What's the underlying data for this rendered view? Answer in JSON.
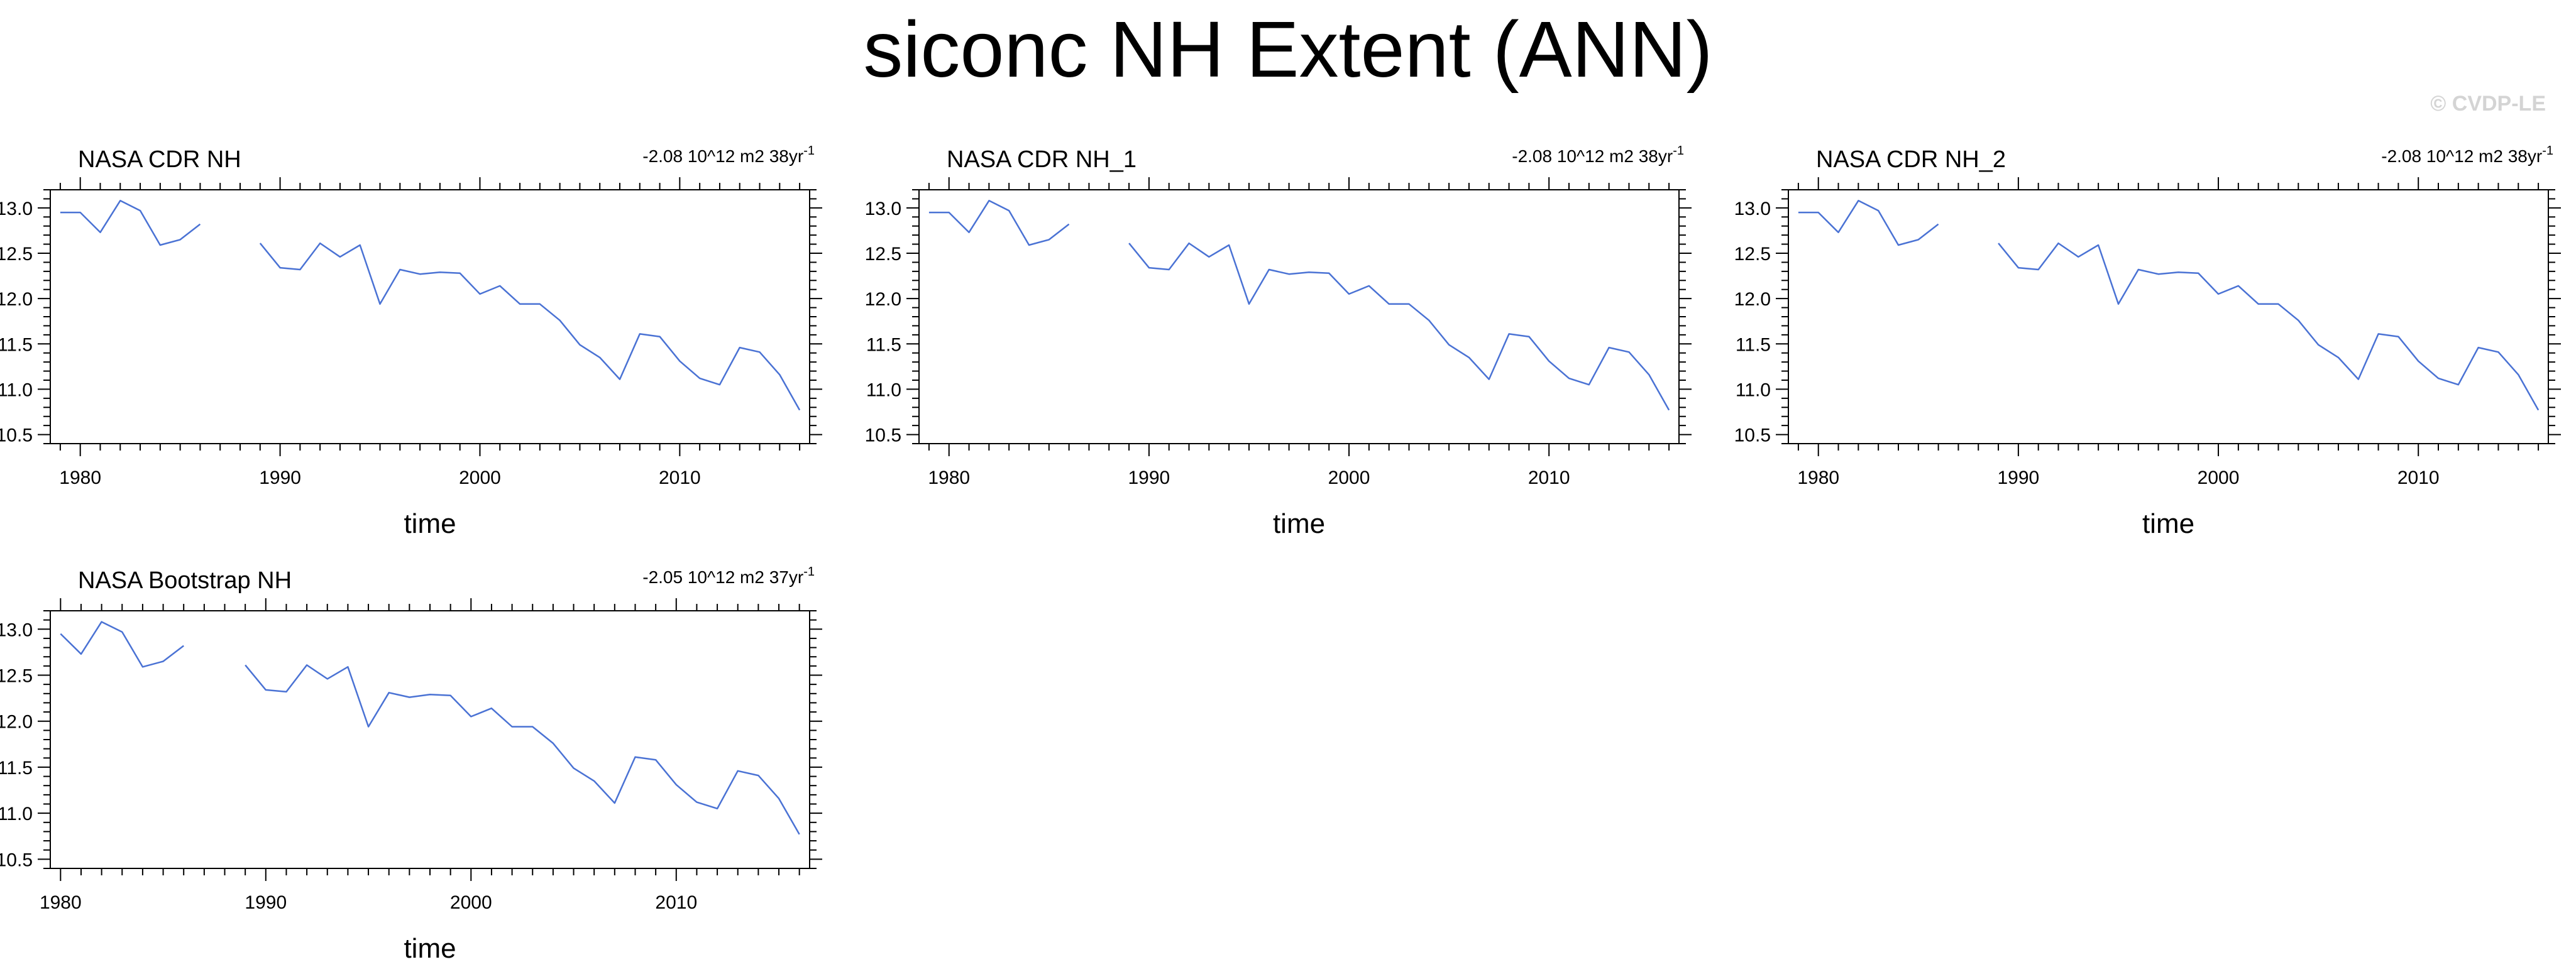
{
  "figure": {
    "title": "siconc NH Extent (ANN)",
    "watermark": "© CVDP-LE",
    "line_color": "#4a72d4"
  },
  "chart_data": [
    {
      "type": "line",
      "title": "NASA CDR NH",
      "trend_label": "-2.08 10^12 m2 38yr",
      "trend_superscript": "-1",
      "xlabel": "time",
      "ylabel": "",
      "xlim": [
        1978.5,
        2016.5
      ],
      "ylim": [
        10.4,
        13.2
      ],
      "xticks": [
        1980,
        1990,
        2000,
        2010
      ],
      "yticks": [
        10.5,
        11.0,
        11.5,
        12.0,
        12.5,
        13.0
      ],
      "ytick_labels": [
        "10.5",
        "11.0",
        "11.5",
        "12.0",
        "12.5",
        "13.0"
      ],
      "grid": false,
      "series": [
        {
          "x": [
            1979,
            1980,
            1981,
            1982,
            1983,
            1984,
            1985,
            1986,
            1987,
            1988,
            1989,
            1990,
            1991,
            1992,
            1993,
            1994,
            1995,
            1996,
            1997,
            1998,
            1999,
            2000,
            2001,
            2002,
            2003,
            2004,
            2005,
            2006,
            2007,
            2008,
            2009,
            2010,
            2011,
            2012,
            2013,
            2014,
            2015,
            2016
          ],
          "y": [
            12.95,
            12.95,
            12.73,
            13.08,
            12.97,
            12.59,
            12.65,
            12.82,
            null,
            null,
            12.61,
            12.34,
            12.32,
            12.61,
            12.46,
            12.59,
            11.94,
            12.32,
            12.27,
            12.29,
            12.28,
            12.05,
            12.14,
            11.94,
            11.94,
            11.76,
            11.49,
            11.35,
            11.11,
            11.61,
            11.58,
            11.31,
            11.12,
            11.05,
            11.46,
            11.41,
            11.16,
            10.77
          ]
        }
      ]
    },
    {
      "type": "line",
      "title": "NASA CDR NH_1",
      "trend_label": "-2.08 10^12 m2 38yr",
      "trend_superscript": "-1",
      "xlabel": "time",
      "ylabel": "",
      "xlim": [
        1978.5,
        2016.5
      ],
      "ylim": [
        10.4,
        13.2
      ],
      "xticks": [
        1980,
        1990,
        2000,
        2010
      ],
      "yticks": [
        10.5,
        11.0,
        11.5,
        12.0,
        12.5,
        13.0
      ],
      "ytick_labels": [
        "10.5",
        "11.0",
        "11.5",
        "12.0",
        "12.5",
        "13.0"
      ],
      "grid": false,
      "series": [
        {
          "x": [
            1979,
            1980,
            1981,
            1982,
            1983,
            1984,
            1985,
            1986,
            1987,
            1988,
            1989,
            1990,
            1991,
            1992,
            1993,
            1994,
            1995,
            1996,
            1997,
            1998,
            1999,
            2000,
            2001,
            2002,
            2003,
            2004,
            2005,
            2006,
            2007,
            2008,
            2009,
            2010,
            2011,
            2012,
            2013,
            2014,
            2015,
            2016
          ],
          "y": [
            12.95,
            12.95,
            12.73,
            13.08,
            12.97,
            12.59,
            12.65,
            12.82,
            null,
            null,
            12.61,
            12.34,
            12.32,
            12.61,
            12.46,
            12.59,
            11.94,
            12.32,
            12.27,
            12.29,
            12.28,
            12.05,
            12.14,
            11.94,
            11.94,
            11.76,
            11.49,
            11.35,
            11.11,
            11.61,
            11.58,
            11.31,
            11.12,
            11.05,
            11.46,
            11.41,
            11.16,
            10.77
          ]
        }
      ]
    },
    {
      "type": "line",
      "title": "NASA CDR NH_2",
      "trend_label": "-2.08 10^12 m2 38yr",
      "trend_superscript": "-1",
      "xlabel": "time",
      "ylabel": "",
      "xlim": [
        1978.5,
        2016.5
      ],
      "ylim": [
        10.4,
        13.2
      ],
      "xticks": [
        1980,
        1990,
        2000,
        2010
      ],
      "yticks": [
        10.5,
        11.0,
        11.5,
        12.0,
        12.5,
        13.0
      ],
      "ytick_labels": [
        "10.5",
        "11.0",
        "11.5",
        "12.0",
        "12.5",
        "13.0"
      ],
      "grid": false,
      "series": [
        {
          "x": [
            1979,
            1980,
            1981,
            1982,
            1983,
            1984,
            1985,
            1986,
            1987,
            1988,
            1989,
            1990,
            1991,
            1992,
            1993,
            1994,
            1995,
            1996,
            1997,
            1998,
            1999,
            2000,
            2001,
            2002,
            2003,
            2004,
            2005,
            2006,
            2007,
            2008,
            2009,
            2010,
            2011,
            2012,
            2013,
            2014,
            2015,
            2016
          ],
          "y": [
            12.95,
            12.95,
            12.73,
            13.08,
            12.97,
            12.59,
            12.65,
            12.82,
            null,
            null,
            12.61,
            12.34,
            12.32,
            12.61,
            12.46,
            12.59,
            11.94,
            12.32,
            12.27,
            12.29,
            12.28,
            12.05,
            12.14,
            11.94,
            11.94,
            11.76,
            11.49,
            11.35,
            11.11,
            11.61,
            11.58,
            11.31,
            11.12,
            11.05,
            11.46,
            11.41,
            11.16,
            10.77
          ]
        }
      ]
    },
    {
      "type": "line",
      "title": "NASA Bootstrap NH",
      "trend_label": "-2.05 10^12 m2 37yr",
      "trend_superscript": "-1",
      "xlabel": "time",
      "ylabel": "",
      "xlim": [
        1979.5,
        2016.5
      ],
      "ylim": [
        10.4,
        13.2
      ],
      "xticks": [
        1980,
        1990,
        2000,
        2010
      ],
      "yticks": [
        10.5,
        11.0,
        11.5,
        12.0,
        12.5,
        13.0
      ],
      "ytick_labels": [
        "10.5",
        "11.0",
        "11.5",
        "12.0",
        "12.5",
        "13.0"
      ],
      "grid": false,
      "series": [
        {
          "x": [
            1980,
            1981,
            1982,
            1983,
            1984,
            1985,
            1986,
            1987,
            1988,
            1989,
            1990,
            1991,
            1992,
            1993,
            1994,
            1995,
            1996,
            1997,
            1998,
            1999,
            2000,
            2001,
            2002,
            2003,
            2004,
            2005,
            2006,
            2007,
            2008,
            2009,
            2010,
            2011,
            2012,
            2013,
            2014,
            2015,
            2016
          ],
          "y": [
            12.95,
            12.73,
            13.08,
            12.97,
            12.59,
            12.65,
            12.82,
            null,
            null,
            12.61,
            12.34,
            12.32,
            12.61,
            12.46,
            12.59,
            11.94,
            12.31,
            12.26,
            12.29,
            12.28,
            12.05,
            12.14,
            11.94,
            11.94,
            11.76,
            11.49,
            11.35,
            11.11,
            11.61,
            11.58,
            11.31,
            11.12,
            11.05,
            11.46,
            11.41,
            11.16,
            10.77
          ]
        }
      ]
    }
  ]
}
